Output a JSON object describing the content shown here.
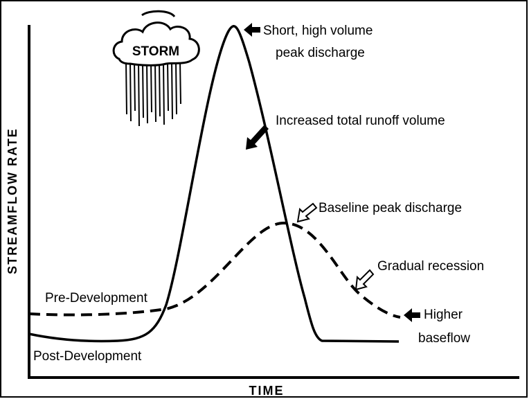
{
  "storm": "STORM",
  "y_axis_label": "STREAMFLOW RATE",
  "x_axis_label": "TIME",
  "annotations": {
    "peak": [
      "Short, high volume",
      "peak discharge"
    ],
    "volume": "Increased total runoff volume",
    "baseline": "Baseline peak discharge",
    "recession": "Gradual recession",
    "baseflow": [
      "Higher",
      "baseflow"
    ],
    "pre": "Pre-Development",
    "post": "Post-Development"
  }
}
